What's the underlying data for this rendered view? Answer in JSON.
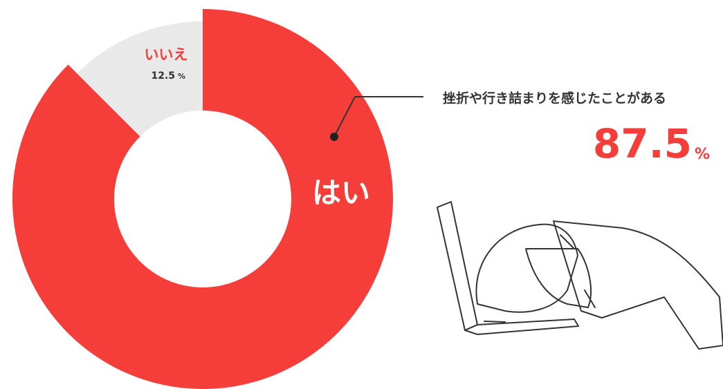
{
  "chart_data": {
    "type": "pie",
    "donut": true,
    "categories": [
      "はい",
      "いいえ"
    ],
    "values": [
      87.5,
      12.5
    ],
    "unit": "%",
    "colors": [
      "#f53d3a",
      "#e9e9e9"
    ],
    "annotation": "挫折や行き詰まりを感じたことがある"
  }
}
